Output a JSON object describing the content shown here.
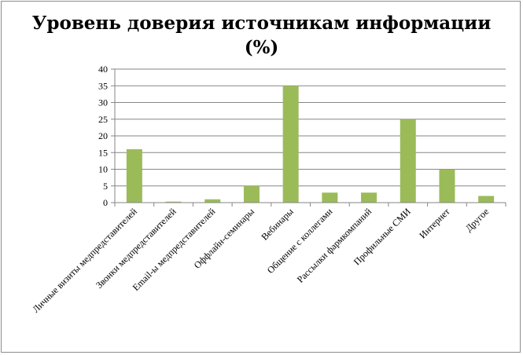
{
  "chart_data": {
    "type": "bar",
    "title_line1": "Уровень доверия источникам информации",
    "title_line2": "(%)",
    "categories": [
      "Личные визиты медпредставителей",
      "Звонки медпредставителей",
      "Email-ы медпредставителей",
      "Оффлайн-семинары",
      "Вебинары",
      "Общение с коллегами",
      "Рассылки фармкомпаний",
      "Профильные СМИ",
      "Интернет",
      "Другое"
    ],
    "values": [
      16,
      0.3,
      1,
      5,
      35,
      3,
      3,
      25,
      10,
      2
    ],
    "ylim": [
      0,
      40
    ],
    "yticks": [
      0,
      5,
      10,
      15,
      20,
      25,
      30,
      35,
      40
    ],
    "grid": true,
    "legend": "none",
    "bar_color": "#9bbb59",
    "grid_color": "#868686"
  }
}
